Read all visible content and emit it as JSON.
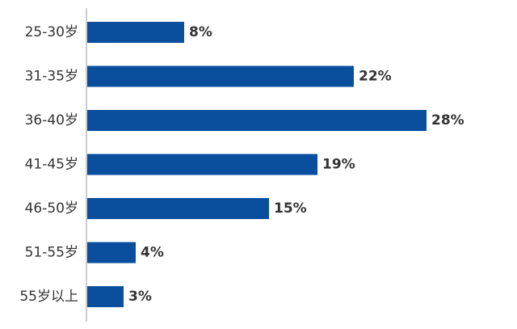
{
  "chart_data": {
    "type": "bar",
    "orientation": "horizontal",
    "categories": [
      "25-30岁",
      "31-35岁",
      "36-40岁",
      "41-45岁",
      "46-50岁",
      "51-55岁",
      "55岁以上"
    ],
    "values": [
      8,
      22,
      28,
      19,
      15,
      4,
      3
    ],
    "value_labels": [
      "8%",
      "22%",
      "28%",
      "19%",
      "15%",
      "4%",
      "3%"
    ],
    "unit": "%",
    "bar_color": "#0a4f9e",
    "axis_line_color": "#999999",
    "grid": false,
    "legend": "none",
    "xlim": [
      0,
      30
    ]
  }
}
